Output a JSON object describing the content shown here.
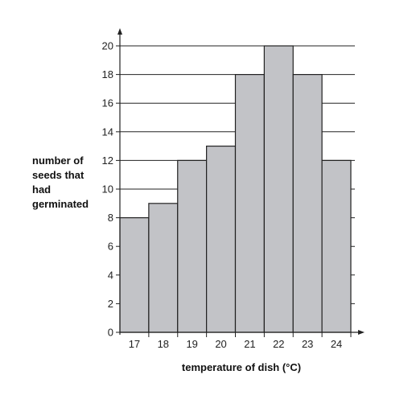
{
  "chart_data": {
    "type": "bar",
    "categories": [
      "17",
      "18",
      "19",
      "20",
      "21",
      "22",
      "23",
      "24"
    ],
    "values": [
      8,
      9,
      12,
      13,
      18,
      20,
      18,
      12
    ],
    "title": "",
    "xlabel": "temperature of dish (°C)",
    "ylabel": [
      "number of",
      "seeds that",
      "had",
      "germinated"
    ],
    "ylim": [
      0,
      20
    ],
    "yticks": [
      "0",
      "2",
      "4",
      "6",
      "8",
      "10",
      "12",
      "14",
      "16",
      "18",
      "20"
    ],
    "grid": "horizontal",
    "colors": {
      "bar": "#c2c3c7",
      "line": "#222222"
    }
  }
}
